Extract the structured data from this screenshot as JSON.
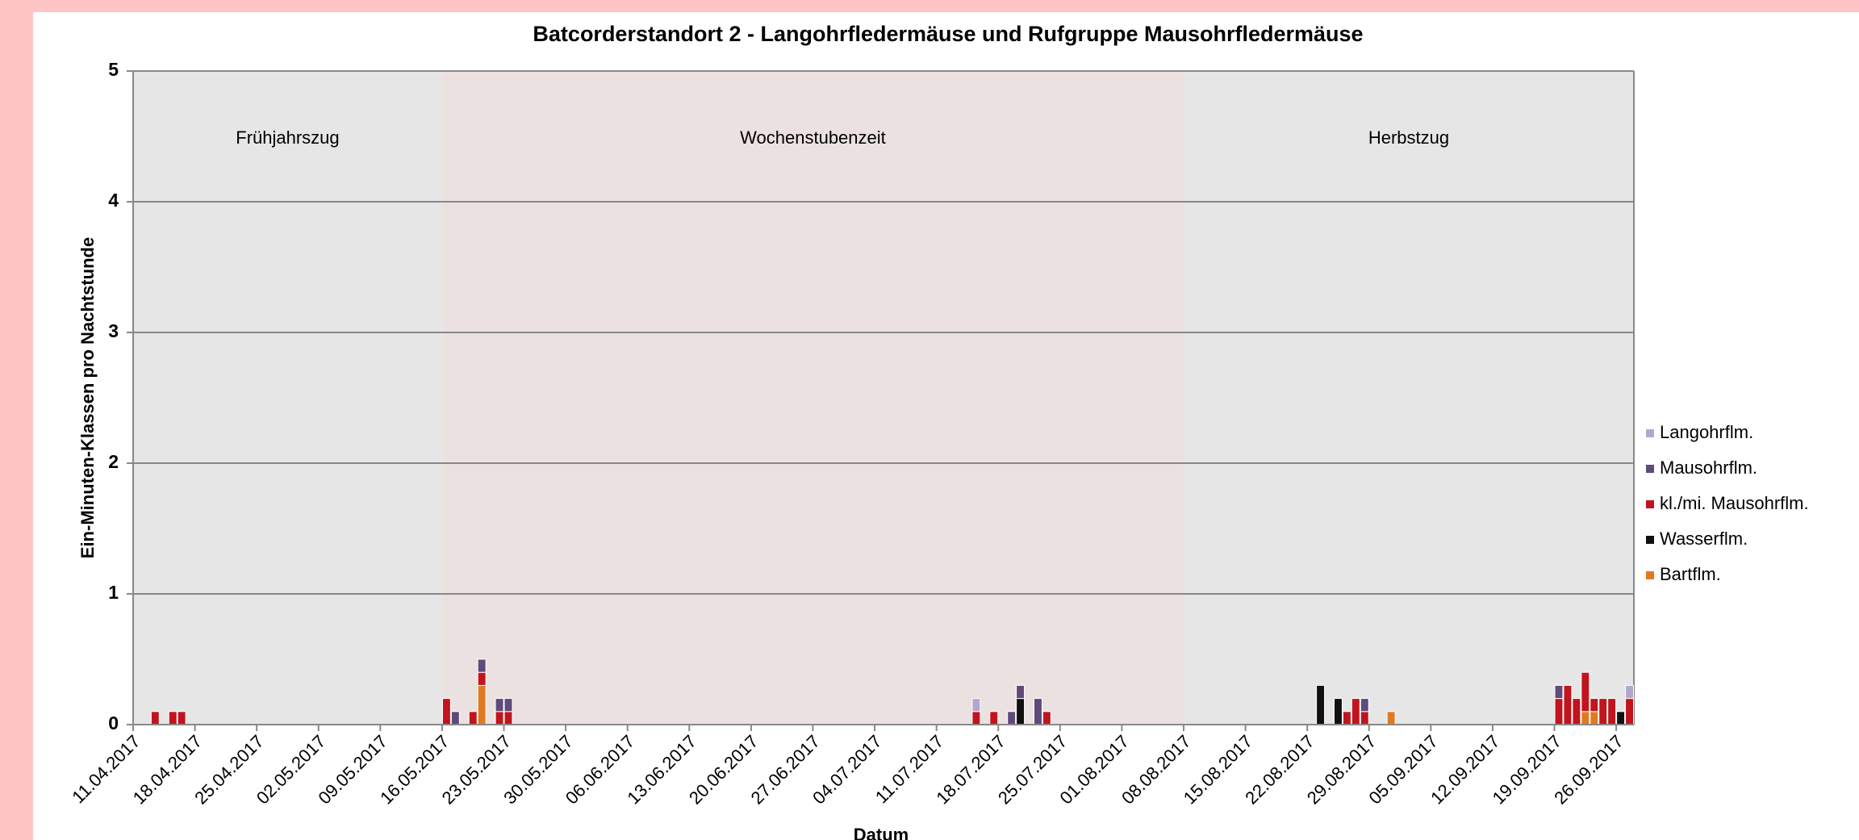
{
  "chart_data": {
    "type": "stacked_bar",
    "title": "Batcorderstandort 2 - Langohrfledermäuse und Rufgruppe Mausohrfledermäuse",
    "y_label": "Ein-Minuten-Klassen  pro Nachtstunde",
    "x_label": "Datum",
    "ylim": [
      0,
      5
    ],
    "yticks": [
      0,
      1,
      2,
      3,
      4,
      5
    ],
    "grid": true,
    "legend": "right",
    "periods": [
      {
        "label": "Frühjahrszug",
        "from": "11.04.2017",
        "color": "#e6e6e6"
      },
      {
        "label": "Wochenstubenzeit",
        "from": "16.05.2017",
        "color": "#ece1e1"
      },
      {
        "label": "Herbstzug",
        "from": "08.08.2017",
        "color": "#e6e6e6"
      }
    ],
    "categories": [
      "11.04.2017",
      null,
      null,
      null,
      null,
      null,
      null,
      "18.04.2017",
      null,
      null,
      null,
      null,
      null,
      null,
      "25.04.2017",
      null,
      null,
      null,
      null,
      null,
      null,
      "02.05.2017",
      null,
      null,
      null,
      null,
      null,
      null,
      "09.05.2017",
      null,
      null,
      null,
      null,
      null,
      null,
      "16.05.2017",
      null,
      null,
      null,
      null,
      null,
      null,
      "23.05.2017",
      null,
      null,
      null,
      null,
      null,
      null,
      "30.05.2017",
      null,
      null,
      null,
      null,
      null,
      null,
      "06.06.2017",
      null,
      null,
      null,
      null,
      null,
      null,
      "13.06.2017",
      null,
      null,
      null,
      null,
      null,
      null,
      "20.06.2017",
      null,
      null,
      null,
      null,
      null,
      null,
      "27.06.2017",
      null,
      null,
      null,
      null,
      null,
      null,
      "04.07.2017",
      null,
      null,
      null,
      null,
      null,
      null,
      "11.07.2017",
      null,
      null,
      null,
      null,
      null,
      null,
      "18.07.2017",
      null,
      null,
      null,
      null,
      null,
      null,
      "25.07.2017",
      null,
      null,
      null,
      null,
      null,
      null,
      "01.08.2017",
      null,
      null,
      null,
      null,
      null,
      null,
      "08.08.2017",
      null,
      null,
      null,
      null,
      null,
      null,
      "15.08.2017",
      null,
      null,
      null,
      null,
      null,
      null,
      "22.08.2017",
      null,
      null,
      null,
      null,
      null,
      null,
      "29.08.2017",
      null,
      null,
      null,
      null,
      null,
      null,
      "05.09.2017",
      null,
      null,
      null,
      null,
      null,
      null,
      "12.09.2017",
      null,
      null,
      null,
      null,
      null,
      null,
      "19.09.2017",
      null,
      null,
      null,
      null,
      null,
      null,
      "26.09.2017",
      null
    ],
    "series": [
      {
        "name": "Langohrflm.",
        "color": "#b4a7cb",
        "values": [
          0,
          0,
          0,
          0,
          0,
          0,
          0,
          0,
          0,
          0,
          0,
          0,
          0,
          0,
          0,
          0,
          0,
          0,
          0,
          0,
          0,
          0,
          0,
          0,
          0,
          0,
          0,
          0,
          0,
          0,
          0,
          0,
          0,
          0,
          0,
          0,
          0,
          0,
          0,
          0,
          0,
          0,
          0,
          0,
          0,
          0,
          0,
          0,
          0,
          0,
          0,
          0,
          0,
          0,
          0,
          0,
          0,
          0,
          0,
          0,
          0,
          0,
          0,
          0,
          0,
          0,
          0,
          0,
          0,
          0,
          0,
          0,
          0,
          0,
          0,
          0,
          0,
          0,
          0,
          0,
          0,
          0,
          0,
          0,
          0,
          0,
          0,
          0,
          0,
          0,
          0,
          0,
          0,
          0,
          0,
          0.1,
          0,
          0,
          0,
          0,
          0,
          0,
          0,
          0,
          0,
          0,
          0,
          0,
          0,
          0,
          0,
          0,
          0,
          0,
          0,
          0,
          0,
          0,
          0,
          0,
          0,
          0,
          0,
          0,
          0,
          0,
          0,
          0,
          0,
          0,
          0,
          0,
          0,
          0,
          0,
          0,
          0,
          0,
          0,
          0,
          0,
          0,
          0,
          0,
          0,
          0,
          0,
          0,
          0,
          0,
          0,
          0,
          0,
          0,
          0,
          0,
          0,
          0,
          0,
          0,
          0,
          0,
          0,
          0,
          0,
          0,
          0,
          0,
          0,
          0.1
        ]
      },
      {
        "name": "Mausohrflm.",
        "color": "#5f4a7b",
        "values": [
          0,
          0,
          0,
          0,
          0,
          0,
          0,
          0,
          0,
          0,
          0,
          0,
          0,
          0,
          0,
          0,
          0,
          0,
          0,
          0,
          0,
          0,
          0,
          0,
          0,
          0,
          0,
          0,
          0,
          0,
          0,
          0,
          0,
          0,
          0,
          0,
          0.1,
          0,
          0,
          0.1,
          0,
          0.1,
          0.1,
          0,
          0,
          0,
          0,
          0,
          0,
          0,
          0,
          0,
          0,
          0,
          0,
          0,
          0,
          0,
          0,
          0,
          0,
          0,
          0,
          0,
          0,
          0,
          0,
          0,
          0,
          0,
          0,
          0,
          0,
          0,
          0,
          0,
          0,
          0,
          0,
          0,
          0,
          0,
          0,
          0,
          0,
          0,
          0,
          0,
          0,
          0,
          0,
          0,
          0,
          0,
          0,
          0,
          0,
          0,
          0,
          0.1,
          0.1,
          0,
          0.2,
          0,
          0,
          0,
          0,
          0,
          0,
          0,
          0,
          0,
          0,
          0,
          0,
          0,
          0,
          0,
          0,
          0,
          0,
          0,
          0,
          0,
          0,
          0,
          0,
          0,
          0,
          0,
          0,
          0,
          0,
          0,
          0,
          0,
          0,
          0,
          0,
          0.1,
          0,
          0,
          0,
          0,
          0,
          0,
          0,
          0,
          0,
          0,
          0,
          0,
          0,
          0,
          0,
          0,
          0,
          0,
          0,
          0,
          0,
          0.1,
          0,
          0,
          0,
          0,
          0,
          0,
          0,
          0
        ]
      },
      {
        "name": "kl./mi. Mausohrflm.",
        "color": "#c0141e",
        "values": [
          0,
          0,
          0.1,
          0,
          0.1,
          0.1,
          0,
          0,
          0,
          0,
          0,
          0,
          0,
          0,
          0,
          0,
          0,
          0,
          0,
          0,
          0,
          0,
          0,
          0,
          0,
          0,
          0,
          0,
          0,
          0,
          0,
          0,
          0,
          0,
          0,
          0.2,
          0,
          0,
          0.1,
          0.1,
          0,
          0.1,
          0.1,
          0,
          0,
          0,
          0,
          0,
          0,
          0,
          0,
          0,
          0,
          0,
          0,
          0,
          0,
          0,
          0,
          0,
          0,
          0,
          0,
          0,
          0,
          0,
          0,
          0,
          0,
          0,
          0,
          0,
          0,
          0,
          0,
          0,
          0,
          0,
          0,
          0,
          0,
          0,
          0,
          0,
          0,
          0,
          0,
          0,
          0,
          0,
          0,
          0,
          0,
          0,
          0,
          0.1,
          0,
          0.1,
          0,
          0,
          0,
          0,
          0,
          0.1,
          0,
          0,
          0,
          0,
          0,
          0,
          0,
          0,
          0,
          0,
          0,
          0,
          0,
          0,
          0,
          0,
          0,
          0,
          0,
          0,
          0,
          0,
          0,
          0,
          0,
          0,
          0,
          0,
          0,
          0,
          0,
          0,
          0,
          0.1,
          0.2,
          0.1,
          0,
          0,
          0,
          0,
          0,
          0,
          0,
          0,
          0,
          0,
          0,
          0,
          0,
          0,
          0,
          0,
          0,
          0,
          0,
          0,
          0,
          0.2,
          0.3,
          0.2,
          0.3,
          0.1,
          0.2,
          0.2,
          0,
          0.2
        ]
      },
      {
        "name": "Wasserflm.",
        "color": "#111111",
        "values": [
          0,
          0,
          0,
          0,
          0,
          0,
          0,
          0,
          0,
          0,
          0,
          0,
          0,
          0,
          0,
          0,
          0,
          0,
          0,
          0,
          0,
          0,
          0,
          0,
          0,
          0,
          0,
          0,
          0,
          0,
          0,
          0,
          0,
          0,
          0,
          0,
          0,
          0,
          0,
          0,
          0,
          0,
          0,
          0,
          0,
          0,
          0,
          0,
          0,
          0,
          0,
          0,
          0,
          0,
          0,
          0,
          0,
          0,
          0,
          0,
          0,
          0,
          0,
          0,
          0,
          0,
          0,
          0,
          0,
          0,
          0,
          0,
          0,
          0,
          0,
          0,
          0,
          0,
          0,
          0,
          0,
          0,
          0,
          0,
          0,
          0,
          0,
          0,
          0,
          0,
          0,
          0,
          0,
          0,
          0,
          0,
          0,
          0,
          0,
          0,
          0.2,
          0,
          0,
          0,
          0,
          0,
          0,
          0,
          0,
          0,
          0,
          0,
          0,
          0,
          0,
          0,
          0,
          0,
          0,
          0,
          0,
          0,
          0,
          0,
          0,
          0,
          0,
          0,
          0,
          0,
          0,
          0,
          0,
          0,
          0.3,
          0,
          0.2,
          0,
          0,
          0,
          0,
          0,
          0,
          0,
          0,
          0,
          0,
          0,
          0,
          0,
          0,
          0,
          0,
          0,
          0,
          0,
          0,
          0,
          0,
          0,
          0,
          0,
          0,
          0,
          0,
          0,
          0,
          0,
          0.1,
          0
        ]
      },
      {
        "name": "Bartflm.",
        "color": "#e07a22",
        "values": [
          0,
          0,
          0,
          0,
          0,
          0,
          0,
          0,
          0,
          0,
          0,
          0,
          0,
          0,
          0,
          0,
          0,
          0,
          0,
          0,
          0,
          0,
          0,
          0,
          0,
          0,
          0,
          0,
          0,
          0,
          0,
          0,
          0,
          0,
          0,
          0,
          0,
          0,
          0,
          0.3,
          0,
          0,
          0,
          0,
          0,
          0,
          0,
          0,
          0,
          0,
          0,
          0,
          0,
          0,
          0,
          0,
          0,
          0,
          0,
          0,
          0,
          0,
          0,
          0,
          0,
          0,
          0,
          0,
          0,
          0,
          0,
          0,
          0,
          0,
          0,
          0,
          0,
          0,
          0,
          0,
          0,
          0,
          0,
          0,
          0,
          0,
          0,
          0,
          0,
          0,
          0,
          0,
          0,
          0,
          0,
          0,
          0,
          0,
          0,
          0,
          0,
          0,
          0,
          0,
          0,
          0,
          0,
          0,
          0,
          0,
          0,
          0,
          0,
          0,
          0,
          0,
          0,
          0,
          0,
          0,
          0,
          0,
          0,
          0,
          0,
          0,
          0,
          0,
          0,
          0,
          0,
          0,
          0,
          0,
          0,
          0,
          0,
          0,
          0,
          0,
          0,
          0,
          0.1,
          0,
          0,
          0,
          0,
          0,
          0,
          0,
          0,
          0,
          0,
          0,
          0,
          0,
          0,
          0,
          0,
          0,
          0,
          0,
          0,
          0,
          0.1,
          0.1,
          0,
          0,
          0,
          0
        ]
      }
    ]
  }
}
